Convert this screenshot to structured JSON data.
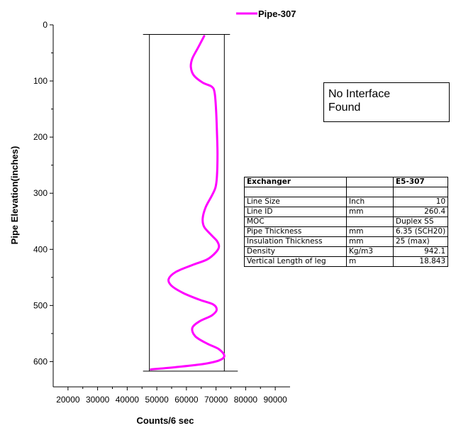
{
  "chart_data": {
    "type": "line",
    "title": "",
    "xlabel": "Counts/6 sec",
    "ylabel": "Pipe Elevation(inches)",
    "xlim": [
      15000,
      95000
    ],
    "ylim": [
      0,
      645
    ],
    "y_inverted": true,
    "x_ticks": [
      20000,
      30000,
      40000,
      50000,
      60000,
      70000,
      80000,
      90000
    ],
    "y_ticks": [
      0,
      100,
      200,
      300,
      400,
      500,
      600
    ],
    "grid": false,
    "legend_position": "top",
    "series": [
      {
        "name": "Pipe-307",
        "color": "#ff00ff",
        "x": [
          66000,
          64000,
          62000,
          61500,
          62500,
          65500,
          68500,
          69500,
          70000,
          70300,
          70500,
          70300,
          69800,
          68500,
          66500,
          65500,
          66000,
          68500,
          70300,
          71000,
          70000,
          67000,
          62000,
          56500,
          54000,
          55000,
          59000,
          64500,
          69000,
          70200,
          68500,
          64500,
          62000,
          63000,
          67000,
          71000,
          72800,
          71000,
          66000,
          58000,
          48000
        ],
        "y": [
          20,
          40,
          60,
          75,
          90,
          103,
          110,
          120,
          150,
          190,
          230,
          270,
          290,
          305,
          325,
          345,
          360,
          375,
          385,
          395,
          405,
          418,
          428,
          440,
          453,
          465,
          478,
          490,
          498,
          508,
          518,
          528,
          540,
          555,
          568,
          578,
          590,
          598,
          604,
          609,
          614
        ]
      }
    ],
    "reference_lines": {
      "verticals": [
        47500,
        72800
      ],
      "y_top": 17,
      "y_bottom": 617
    }
  },
  "annotation": {
    "line1": "No Interface",
    "line2": "Found"
  },
  "info_table": {
    "rows": [
      [
        "Exchanger",
        "",
        "E5-307"
      ],
      [
        "",
        "",
        ""
      ],
      [
        "Line Size",
        "Inch",
        "10"
      ],
      [
        "Line ID",
        "mm",
        "260.4"
      ],
      [
        "MOC",
        "",
        "Duplex SS"
      ],
      [
        "Pipe Thickness",
        "mm",
        "6.35 (SCH20)"
      ],
      [
        "Insulation Thickness",
        "mm",
        "25 (max)"
      ],
      [
        "Density",
        "Kg/m3",
        "942.1"
      ],
      [
        "Vertical Length of leg",
        "m",
        "18.843"
      ]
    ]
  }
}
